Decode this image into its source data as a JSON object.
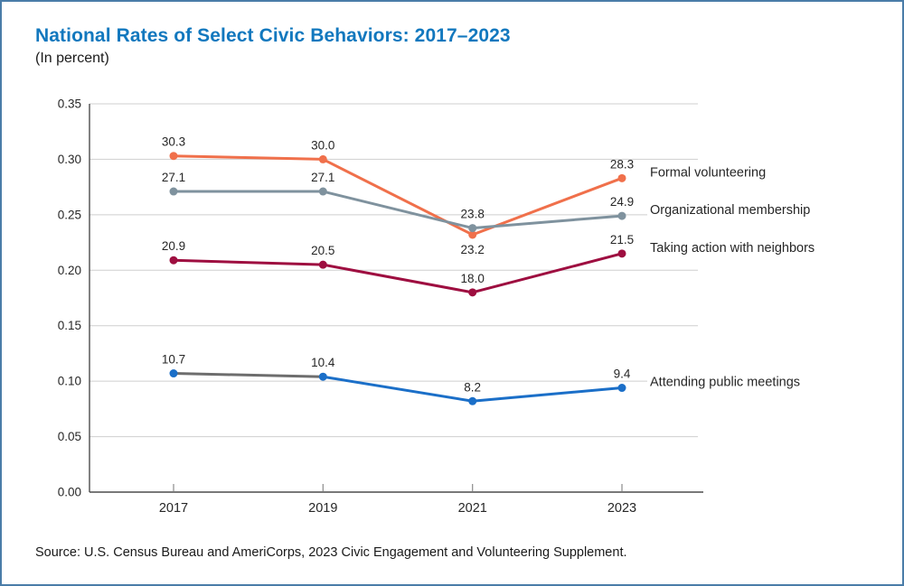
{
  "colors": {
    "title": "#1278BE",
    "border": "#4A7CA8",
    "grid": "#CFCFCF",
    "axis": "#4D4D4D",
    "tick": "#8A8A8A",
    "text": "#262626"
  },
  "footer": {
    "source": "Source: U.S. Census Bureau and AmeriCorps, 2023 Civic Engagement and Volunteering Supplement."
  },
  "chart_data": {
    "type": "line",
    "title": "National Rates of Select Civic Behaviors: 2017–2023",
    "subtitle": "(In percent)",
    "x_labels": [
      "2017",
      "2019",
      "2021",
      "2023"
    ],
    "y_axis": {
      "min": 0,
      "max": 0.35,
      "tick_labels": [
        "0.00",
        "0.05",
        "0.10",
        "0.15",
        "0.20",
        "0.25",
        "0.30",
        "0.35"
      ]
    },
    "grid": "horizontal",
    "legend_position": "labels-at-line-ends-right",
    "series": [
      {
        "name": "Formal volunteering",
        "color": "#F0704B",
        "values": [
          30.3,
          30.0,
          23.2,
          28.3
        ],
        "label_positions": [
          "above",
          "above",
          "below",
          "above"
        ]
      },
      {
        "name": "Organizational membership",
        "color": "#7F929E",
        "values": [
          27.1,
          27.1,
          23.8,
          24.9
        ],
        "label_positions": [
          "above",
          "above",
          "above",
          "above"
        ]
      },
      {
        "name": "Taking action with neighbors",
        "color": "#9E0E40",
        "values": [
          20.9,
          20.5,
          18.0,
          21.5
        ],
        "label_positions": [
          "above",
          "above",
          "above",
          "above"
        ]
      },
      {
        "name": "Attending public meetings",
        "color": "#1B6FC8",
        "values": [
          10.7,
          10.4,
          8.2,
          9.4
        ],
        "label_positions": [
          "above",
          "above",
          "above",
          "above"
        ],
        "segment_colors": [
          "#6D6D6D",
          null,
          null
        ]
      }
    ]
  }
}
